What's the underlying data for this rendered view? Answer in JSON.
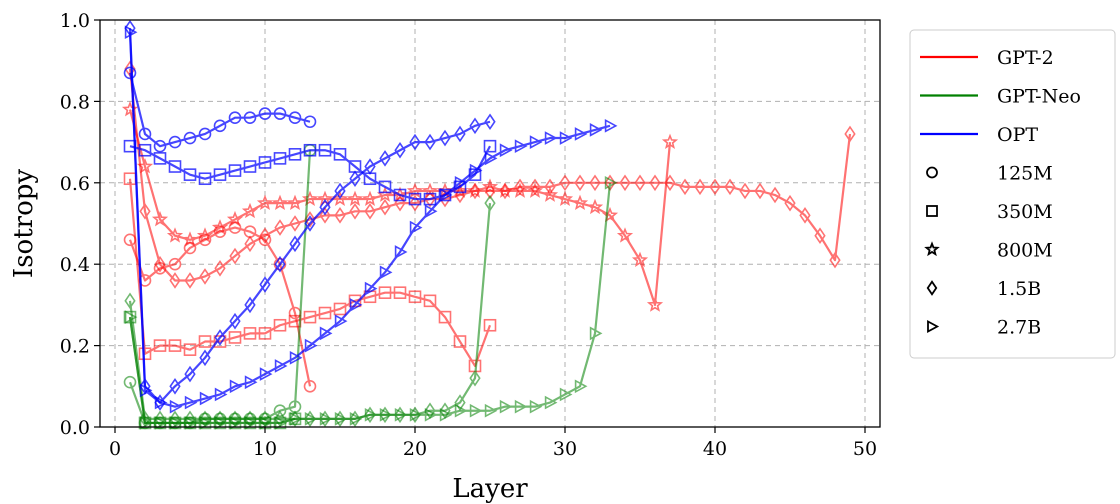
{
  "chart_data": {
    "type": "line",
    "xlabel": "Layer",
    "ylabel": "Isotropy",
    "xlim": [
      -1,
      51
    ],
    "ylim": [
      0,
      1
    ],
    "xticks": [
      0,
      10,
      20,
      30,
      40,
      50
    ],
    "yticks": [
      0.0,
      0.2,
      0.4,
      0.6,
      0.8,
      1.0
    ],
    "xtick_labels": [
      "0",
      "10",
      "20",
      "30",
      "40",
      "50"
    ],
    "ytick_labels": [
      "0.0",
      "0.2",
      "0.4",
      "0.6",
      "0.8",
      "1.0"
    ],
    "grid": true,
    "legend_position": "outside-right",
    "legend": {
      "models": [
        {
          "label": "GPT-2",
          "color": "#ff0000"
        },
        {
          "label": "GPT-Neo",
          "color": "#008000"
        },
        {
          "label": "OPT",
          "color": "#0000ff"
        }
      ],
      "sizes": [
        {
          "label": "125M",
          "marker": "circle"
        },
        {
          "label": "350M",
          "marker": "square"
        },
        {
          "label": "800M",
          "marker": "star"
        },
        {
          "label": "1.5B",
          "marker": "diamond"
        },
        {
          "label": "2.7B",
          "marker": "triangle-right"
        }
      ]
    },
    "series": [
      {
        "model": "GPT-2",
        "size": "125M",
        "color": "#ff0000",
        "marker": "circle",
        "x": [
          1,
          2,
          3,
          4,
          5,
          6,
          7,
          8,
          9,
          10,
          11,
          12,
          13
        ],
        "y": [
          0.46,
          0.36,
          0.39,
          0.4,
          0.44,
          0.46,
          0.48,
          0.49,
          0.48,
          0.46,
          0.4,
          0.28,
          0.1
        ]
      },
      {
        "model": "GPT-2",
        "size": "350M",
        "color": "#ff0000",
        "marker": "square",
        "x": [
          1,
          2,
          3,
          4,
          5,
          6,
          7,
          8,
          9,
          10,
          11,
          12,
          13,
          14,
          15,
          16,
          17,
          18,
          19,
          20,
          21,
          22,
          23,
          24,
          25
        ],
        "y": [
          0.61,
          0.18,
          0.2,
          0.2,
          0.19,
          0.21,
          0.21,
          0.22,
          0.23,
          0.23,
          0.25,
          0.26,
          0.27,
          0.28,
          0.29,
          0.31,
          0.32,
          0.33,
          0.33,
          0.32,
          0.31,
          0.27,
          0.21,
          0.15,
          0.25
        ]
      },
      {
        "model": "GPT-2",
        "size": "800M",
        "color": "#ff0000",
        "marker": "star",
        "x": [
          1,
          2,
          3,
          4,
          5,
          6,
          7,
          8,
          9,
          10,
          11,
          12,
          13,
          14,
          15,
          16,
          17,
          18,
          19,
          20,
          21,
          22,
          23,
          24,
          25,
          26,
          27,
          28,
          29,
          30,
          31,
          32,
          33,
          34,
          35,
          36,
          37
        ],
        "y": [
          0.78,
          0.64,
          0.51,
          0.47,
          0.46,
          0.47,
          0.49,
          0.51,
          0.53,
          0.55,
          0.55,
          0.55,
          0.56,
          0.56,
          0.56,
          0.56,
          0.56,
          0.57,
          0.57,
          0.58,
          0.58,
          0.58,
          0.58,
          0.58,
          0.59,
          0.58,
          0.58,
          0.58,
          0.57,
          0.56,
          0.55,
          0.54,
          0.52,
          0.47,
          0.41,
          0.3,
          0.7
        ]
      },
      {
        "model": "GPT-2",
        "size": "1.5B",
        "color": "#ff0000",
        "marker": "diamond",
        "x": [
          1,
          2,
          3,
          4,
          5,
          6,
          7,
          8,
          9,
          10,
          11,
          12,
          13,
          14,
          15,
          16,
          17,
          18,
          19,
          20,
          21,
          22,
          23,
          24,
          25,
          26,
          27,
          28,
          29,
          30,
          31,
          32,
          33,
          34,
          35,
          36,
          37,
          38,
          39,
          40,
          41,
          42,
          43,
          44,
          45,
          46,
          47,
          48,
          49
        ],
        "y": [
          0.88,
          0.53,
          0.4,
          0.36,
          0.36,
          0.37,
          0.39,
          0.42,
          0.45,
          0.47,
          0.49,
          0.5,
          0.51,
          0.52,
          0.52,
          0.53,
          0.53,
          0.54,
          0.55,
          0.55,
          0.56,
          0.56,
          0.57,
          0.58,
          0.58,
          0.58,
          0.59,
          0.59,
          0.59,
          0.6,
          0.6,
          0.6,
          0.6,
          0.6,
          0.6,
          0.6,
          0.6,
          0.59,
          0.59,
          0.59,
          0.59,
          0.58,
          0.58,
          0.57,
          0.55,
          0.52,
          0.47,
          0.41,
          0.72
        ]
      },
      {
        "model": "GPT-Neo",
        "size": "125M",
        "color": "#008000",
        "marker": "circle",
        "x": [
          1,
          2,
          3,
          4,
          5,
          6,
          7,
          8,
          9,
          10,
          11,
          12,
          13
        ],
        "y": [
          0.11,
          0.01,
          0.01,
          0.01,
          0.01,
          0.02,
          0.02,
          0.02,
          0.02,
          0.02,
          0.04,
          0.05,
          0.68
        ]
      },
      {
        "model": "GPT-Neo",
        "size": "350M",
        "color": "#008000",
        "marker": "square",
        "x": [
          1,
          2,
          3,
          4,
          5,
          6,
          7,
          8,
          9,
          10,
          11,
          12
        ],
        "y": [
          0.27,
          0.01,
          0.01,
          0.01,
          0.01,
          0.01,
          0.01,
          0.01,
          0.01,
          0.01,
          0.01,
          0.02
        ]
      },
      {
        "model": "GPT-Neo",
        "size": "1.5B",
        "color": "#008000",
        "marker": "diamond",
        "x": [
          1,
          2,
          3,
          4,
          5,
          6,
          7,
          8,
          9,
          10,
          11,
          12,
          13,
          14,
          15,
          16,
          17,
          18,
          19,
          20,
          21,
          22,
          23,
          24,
          25
        ],
        "y": [
          0.31,
          0.02,
          0.02,
          0.02,
          0.02,
          0.02,
          0.02,
          0.02,
          0.02,
          0.02,
          0.02,
          0.02,
          0.02,
          0.02,
          0.02,
          0.02,
          0.03,
          0.03,
          0.03,
          0.03,
          0.04,
          0.04,
          0.06,
          0.12,
          0.55
        ]
      },
      {
        "model": "GPT-Neo",
        "size": "2.7B",
        "color": "#008000",
        "marker": "triangle-right",
        "x": [
          1,
          2,
          3,
          4,
          5,
          6,
          7,
          8,
          9,
          10,
          11,
          12,
          13,
          14,
          15,
          16,
          17,
          18,
          19,
          20,
          21,
          22,
          23,
          24,
          25,
          26,
          27,
          28,
          29,
          30,
          31,
          32,
          33
        ],
        "y": [
          0.27,
          0.01,
          0.01,
          0.01,
          0.01,
          0.01,
          0.01,
          0.01,
          0.01,
          0.01,
          0.01,
          0.02,
          0.02,
          0.02,
          0.02,
          0.02,
          0.03,
          0.03,
          0.03,
          0.03,
          0.03,
          0.03,
          0.04,
          0.04,
          0.04,
          0.05,
          0.05,
          0.05,
          0.06,
          0.08,
          0.1,
          0.23,
          0.6
        ]
      },
      {
        "model": "OPT",
        "size": "125M",
        "color": "#0000ff",
        "marker": "circle",
        "x": [
          1,
          2,
          3,
          4,
          5,
          6,
          7,
          8,
          9,
          10,
          11,
          12,
          13
        ],
        "y": [
          0.87,
          0.72,
          0.69,
          0.7,
          0.71,
          0.72,
          0.74,
          0.76,
          0.76,
          0.77,
          0.77,
          0.76,
          0.75
        ]
      },
      {
        "model": "OPT",
        "size": "350M",
        "color": "#0000ff",
        "marker": "square",
        "x": [
          1,
          2,
          3,
          4,
          5,
          6,
          7,
          8,
          9,
          10,
          11,
          12,
          13,
          14,
          15,
          16,
          17,
          18,
          19,
          20,
          21,
          22,
          23,
          24,
          25
        ],
        "y": [
          0.69,
          0.68,
          0.66,
          0.64,
          0.62,
          0.61,
          0.62,
          0.63,
          0.64,
          0.65,
          0.66,
          0.67,
          0.68,
          0.68,
          0.67,
          0.64,
          0.61,
          0.59,
          0.57,
          0.56,
          0.56,
          0.57,
          0.59,
          0.62,
          0.69
        ]
      },
      {
        "model": "OPT",
        "size": "1.5B",
        "color": "#0000ff",
        "marker": "diamond",
        "x": [
          1,
          2,
          3,
          4,
          5,
          6,
          7,
          8,
          9,
          10,
          11,
          12,
          13,
          14,
          15,
          16,
          17,
          18,
          19,
          20,
          21,
          22,
          23,
          24,
          25
        ],
        "y": [
          0.98,
          0.1,
          0.06,
          0.1,
          0.13,
          0.17,
          0.22,
          0.26,
          0.3,
          0.35,
          0.4,
          0.45,
          0.5,
          0.54,
          0.58,
          0.61,
          0.64,
          0.66,
          0.68,
          0.7,
          0.7,
          0.71,
          0.72,
          0.74,
          0.75
        ]
      },
      {
        "model": "OPT",
        "size": "2.7B",
        "color": "#0000ff",
        "marker": "triangle-right",
        "x": [
          1,
          2,
          3,
          4,
          5,
          6,
          7,
          8,
          9,
          10,
          11,
          12,
          13,
          14,
          15,
          16,
          17,
          18,
          19,
          20,
          21,
          22,
          23,
          24,
          25,
          26,
          27,
          28,
          29,
          30,
          31,
          32,
          33
        ],
        "y": [
          0.97,
          0.09,
          0.06,
          0.05,
          0.06,
          0.07,
          0.08,
          0.1,
          0.11,
          0.13,
          0.15,
          0.17,
          0.2,
          0.23,
          0.26,
          0.3,
          0.34,
          0.38,
          0.43,
          0.49,
          0.53,
          0.57,
          0.6,
          0.63,
          0.66,
          0.68,
          0.69,
          0.7,
          0.71,
          0.71,
          0.72,
          0.73,
          0.74
        ]
      }
    ]
  }
}
